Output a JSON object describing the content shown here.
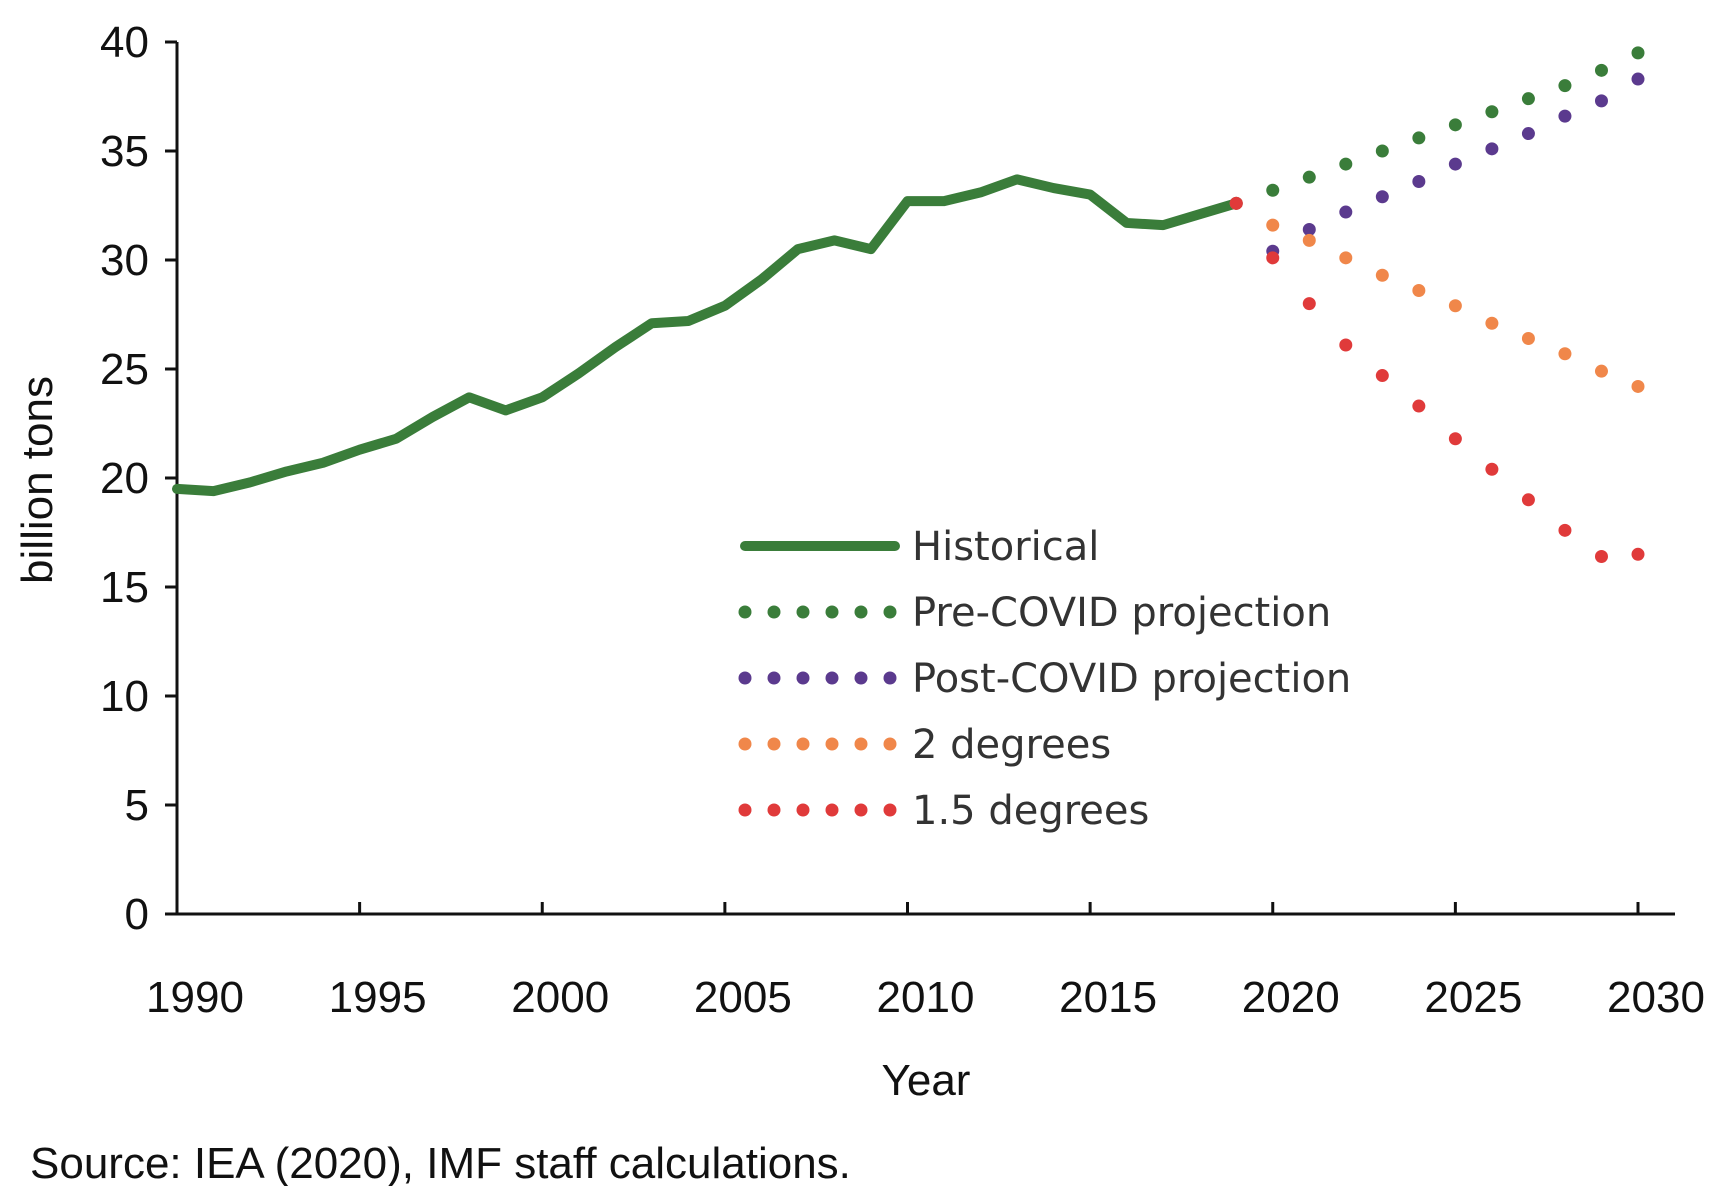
{
  "chart_data": {
    "type": "line",
    "title": "",
    "xlabel": "Year",
    "ylabel": "billion tons",
    "xlim": [
      1990,
      2030
    ],
    "ylim": [
      0,
      40
    ],
    "x_ticks": [
      "1990",
      "1995",
      "2000",
      "2005",
      "2010",
      "2015",
      "2020",
      "2025",
      "2030"
    ],
    "y_ticks": [
      "0",
      "5",
      "10",
      "15",
      "20",
      "25",
      "30",
      "35",
      "40"
    ],
    "grid": false,
    "legend_position": "center-right",
    "series": [
      {
        "name": "Historical",
        "style": "solid",
        "color": "#3a7d3a",
        "x": [
          1990,
          1991,
          1992,
          1993,
          1994,
          1995,
          1996,
          1997,
          1998,
          1999,
          2000,
          2001,
          2002,
          2003,
          2004,
          2005,
          2006,
          2007,
          2008,
          2009,
          2010,
          2011,
          2012,
          2013,
          2014,
          2015,
          2016,
          2017,
          2018,
          2019
        ],
        "y": [
          19.5,
          19.4,
          19.8,
          20.3,
          20.7,
          21.3,
          21.8,
          22.8,
          23.7,
          23.1,
          23.7,
          24.8,
          26.0,
          27.1,
          27.2,
          27.9,
          29.1,
          30.5,
          30.9,
          30.5,
          32.7,
          32.7,
          33.1,
          33.7,
          33.3,
          33.0,
          31.7,
          31.6,
          32.1,
          32.6
        ]
      },
      {
        "name": "Pre-COVID projection",
        "style": "dotted",
        "color": "#3a7d3a",
        "x": [
          2019,
          2020,
          2021,
          2022,
          2023,
          2024,
          2025,
          2026,
          2027,
          2028,
          2029,
          2030
        ],
        "y": [
          32.6,
          33.2,
          33.8,
          34.4,
          35.0,
          35.6,
          36.2,
          36.8,
          37.4,
          38.0,
          38.7,
          39.5
        ]
      },
      {
        "name": "Post-COVID projection",
        "style": "dotted",
        "color": "#5b3a8e",
        "x": [
          2019,
          2020,
          2021,
          2022,
          2023,
          2024,
          2025,
          2026,
          2027,
          2028,
          2029,
          2030
        ],
        "y": [
          32.6,
          30.4,
          31.4,
          32.2,
          32.9,
          33.6,
          34.4,
          35.1,
          35.8,
          36.6,
          37.3,
          38.3
        ]
      },
      {
        "name": "2 degrees",
        "style": "dotted",
        "color": "#f0874a",
        "x": [
          2019,
          2020,
          2021,
          2022,
          2023,
          2024,
          2025,
          2026,
          2027,
          2028,
          2029,
          2030
        ],
        "y": [
          32.6,
          31.6,
          30.9,
          30.1,
          29.3,
          28.6,
          27.9,
          27.1,
          26.4,
          25.7,
          24.9,
          24.2
        ]
      },
      {
        "name": "1.5 degrees",
        "style": "dotted",
        "color": "#e03a3a",
        "x": [
          2019,
          2020,
          2021,
          2022,
          2023,
          2024,
          2025,
          2026,
          2027,
          2028,
          2029,
          2030
        ],
        "y": [
          32.6,
          30.1,
          28.0,
          26.1,
          24.7,
          23.3,
          21.8,
          20.4,
          19.0,
          17.6,
          16.4,
          16.5
        ]
      }
    ]
  },
  "source_note": "Source: IEA (2020), IMF staff calculations."
}
